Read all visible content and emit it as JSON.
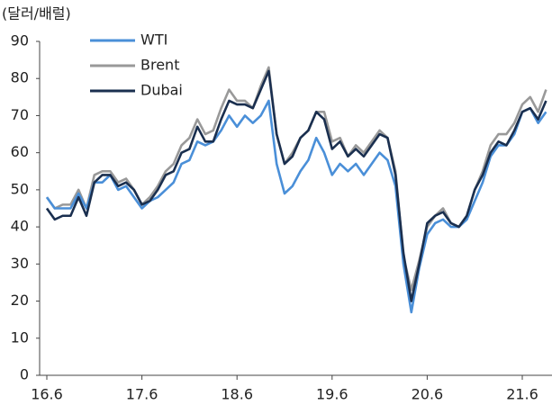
{
  "chart_data": {
    "type": "line",
    "unit_label": "(달러/배럴)",
    "categories": [
      "16.6",
      null,
      null,
      null,
      null,
      null,
      null,
      null,
      null,
      null,
      null,
      null,
      "17.6",
      null,
      null,
      null,
      null,
      null,
      null,
      null,
      null,
      null,
      null,
      null,
      "18.6",
      null,
      null,
      null,
      null,
      null,
      null,
      null,
      null,
      null,
      null,
      null,
      "19.6",
      null,
      null,
      null,
      null,
      null,
      null,
      null,
      null,
      null,
      null,
      null,
      "20.6",
      null,
      null,
      null,
      null,
      null,
      null,
      null,
      null,
      null,
      null,
      null,
      "21.6",
      null,
      null,
      null
    ],
    "series": [
      {
        "name": "WTI",
        "color": "#4a8fd8",
        "values": [
          48,
          45,
          45,
          45,
          49,
          45,
          52,
          52,
          54,
          50,
          51,
          48,
          45,
          47,
          48,
          50,
          52,
          57,
          58,
          63,
          62,
          63,
          66,
          70,
          67,
          70,
          68,
          70,
          74,
          57,
          49,
          51,
          55,
          58,
          64,
          60,
          54,
          57,
          55,
          57,
          54,
          57,
          60,
          58,
          51,
          30,
          17,
          29,
          38,
          41,
          42,
          40,
          40,
          42,
          47,
          52,
          59,
          62,
          62,
          65,
          71,
          72,
          68,
          71
        ]
      },
      {
        "name": "Brent",
        "color": "#999999",
        "values": [
          48,
          45,
          46,
          46,
          50,
          45,
          54,
          55,
          55,
          52,
          53,
          50,
          46,
          48,
          51,
          55,
          57,
          62,
          64,
          69,
          65,
          66,
          72,
          77,
          74,
          74,
          72,
          78,
          83,
          65,
          57,
          60,
          64,
          66,
          71,
          71,
          63,
          64,
          59,
          62,
          60,
          63,
          66,
          64,
          55,
          32,
          23,
          31,
          40,
          43,
          45,
          41,
          40,
          43,
          50,
          55,
          62,
          65,
          65,
          68,
          73,
          75,
          71,
          77
        ]
      },
      {
        "name": "Dubai",
        "color": "#1a2f4f",
        "values": [
          45,
          42,
          43,
          43,
          48,
          43,
          52,
          54,
          54,
          51,
          52,
          50,
          46,
          47,
          50,
          54,
          55,
          60,
          61,
          67,
          63,
          63,
          69,
          74,
          73,
          73,
          72,
          77,
          82,
          65,
          57,
          59,
          64,
          66,
          71,
          69,
          61,
          63,
          59,
          61,
          59,
          62,
          65,
          64,
          54,
          33,
          20,
          30,
          41,
          43,
          44,
          41,
          40,
          43,
          50,
          54,
          60,
          63,
          62,
          66,
          71,
          72,
          69,
          74
        ]
      }
    ],
    "ylim": [
      0,
      90
    ],
    "yticks": [
      0,
      10,
      20,
      30,
      40,
      50,
      60,
      70,
      80,
      90
    ]
  }
}
